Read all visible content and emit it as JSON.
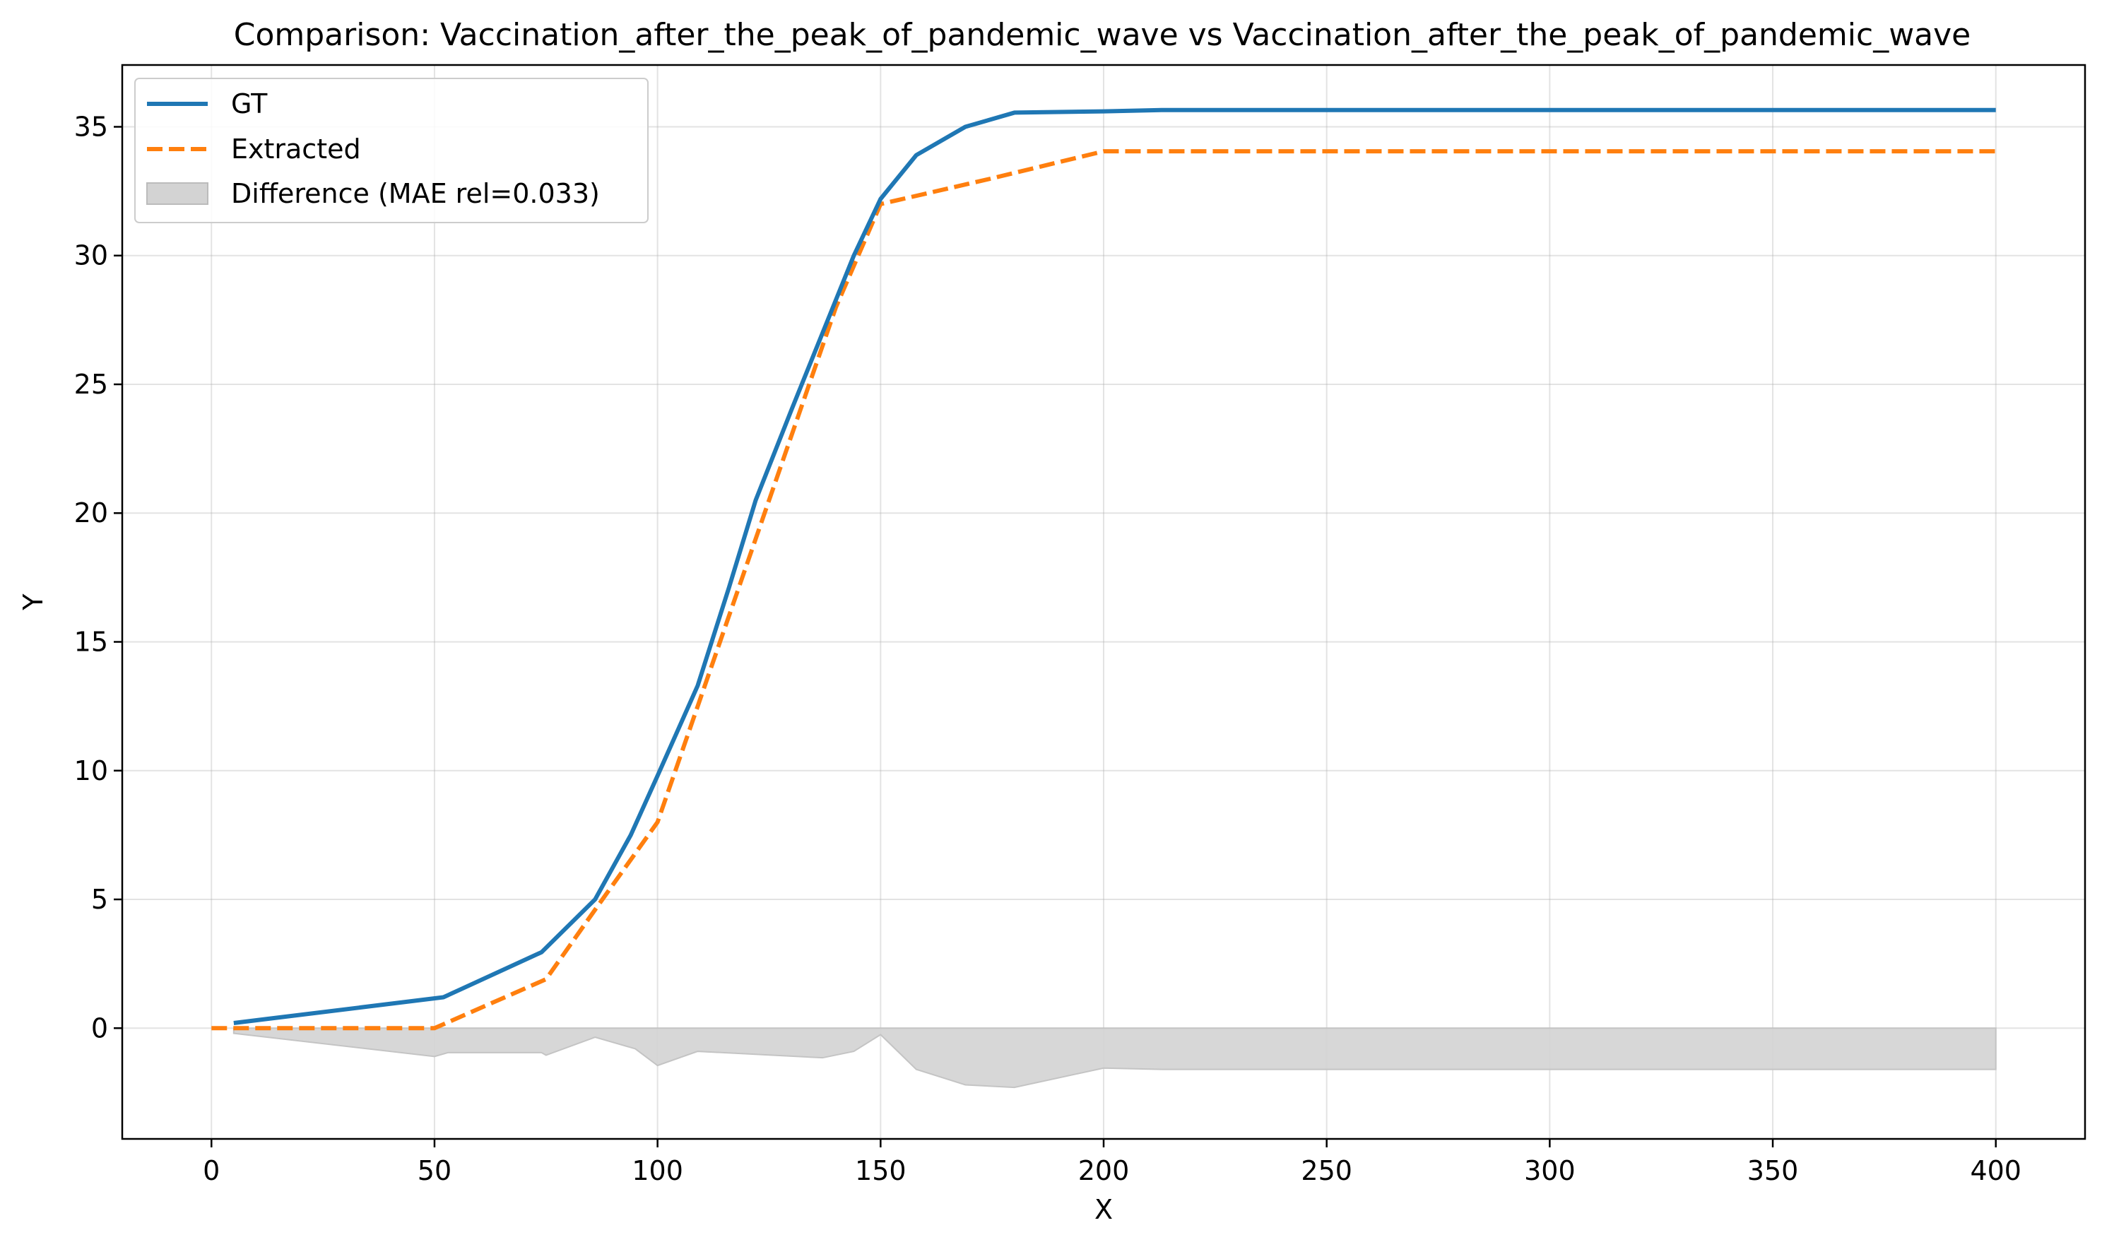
{
  "chart_data": {
    "type": "line",
    "title": "Comparison: Vaccination_after_the_peak_of_pandemic_wave vs Vaccination_after_the_peak_of_pandemic_wave",
    "xlabel": "X",
    "ylabel": "Y",
    "xlim": [
      -20,
      420
    ],
    "ylim": [
      -4.3,
      37.4
    ],
    "xticks": [
      0,
      50,
      100,
      150,
      200,
      250,
      300,
      350,
      400
    ],
    "yticks": [
      0,
      5,
      10,
      15,
      20,
      25,
      30,
      35
    ],
    "grid": true,
    "legend_position": "upper left",
    "series": [
      {
        "name": "GT",
        "color": "#1f77b4",
        "style": "solid",
        "x": [
          5,
          52,
          74,
          86,
          94,
          100,
          109,
          116,
          122,
          130,
          137,
          144,
          150,
          158,
          169,
          180,
          200,
          213,
          250,
          300,
          350,
          400
        ],
        "y": [
          0.2,
          1.2,
          2.95,
          5.0,
          7.5,
          9.8,
          13.3,
          17.1,
          20.5,
          24.0,
          27.0,
          30.0,
          32.2,
          33.9,
          35.0,
          35.55,
          35.6,
          35.65,
          35.65,
          35.65,
          35.65,
          35.65
        ]
      },
      {
        "name": "Extracted",
        "color": "#ff7f0e",
        "style": "dashed",
        "x": [
          0,
          50,
          75,
          86,
          100,
          110,
          120,
          130,
          140,
          150,
          175,
          200,
          250,
          300,
          350,
          400
        ],
        "y": [
          0,
          0,
          1.9,
          4.6,
          8.0,
          13.0,
          18.0,
          23.0,
          28.0,
          32.0,
          33.0,
          34.05,
          34.05,
          34.05,
          34.05,
          34.05
        ]
      },
      {
        "name": "Difference (MAE rel=0.033)",
        "color": "#d3d3d3",
        "style": "fill",
        "x": [
          5,
          50,
          53,
          74,
          75,
          86,
          95,
          100,
          109,
          137,
          144,
          150,
          158,
          169,
          180,
          200,
          213,
          250,
          300,
          350,
          400
        ],
        "y": [
          -0.2,
          -1.1,
          -0.95,
          -0.95,
          -1.05,
          -0.35,
          -0.8,
          -1.45,
          -0.9,
          -1.15,
          -0.9,
          -0.25,
          -1.6,
          -2.2,
          -2.3,
          -1.55,
          -1.6,
          -1.6,
          -1.6,
          -1.6,
          -1.6
        ]
      }
    ]
  }
}
